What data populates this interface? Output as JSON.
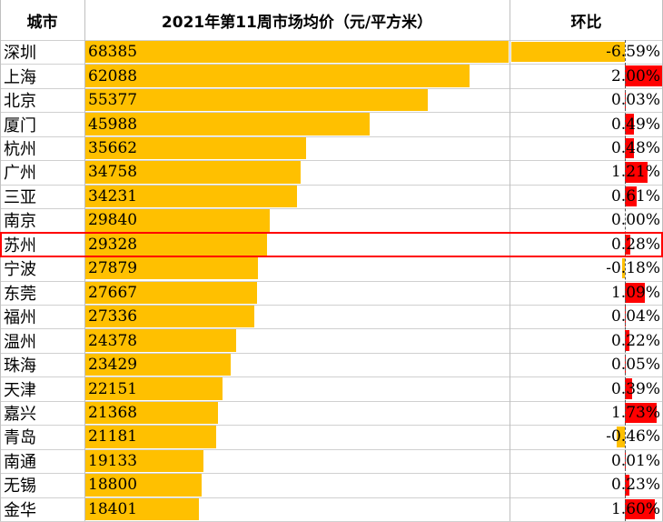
{
  "header": {
    "city_label": "城市",
    "price_label": "2021年第11周市场均价（元/平方米）",
    "change_label": "环比"
  },
  "highlight_city": "苏州",
  "colors": {
    "price_bar": "#ffc000",
    "change_up": "#ff0000",
    "change_down": "#ffc000",
    "highlight": "#ff0000"
  },
  "chart_data": {
    "type": "table",
    "columns": [
      "城市",
      "2021年第11周市场均价（元/平方米）",
      "环比"
    ],
    "rows": [
      {
        "city": "深圳",
        "price": 68385,
        "change": -6.59,
        "change_label": "-6.59%"
      },
      {
        "city": "上海",
        "price": 62088,
        "change": 2.0,
        "change_label": "2.00%"
      },
      {
        "city": "北京",
        "price": 55377,
        "change": 0.03,
        "change_label": "0.03%"
      },
      {
        "city": "厦门",
        "price": 45988,
        "change": 0.49,
        "change_label": "0.49%"
      },
      {
        "city": "杭州",
        "price": 35662,
        "change": 0.48,
        "change_label": "0.48%"
      },
      {
        "city": "广州",
        "price": 34758,
        "change": 1.21,
        "change_label": "1.21%"
      },
      {
        "city": "三亚",
        "price": 34231,
        "change": 0.61,
        "change_label": "0.61%"
      },
      {
        "city": "南京",
        "price": 29840,
        "change": 0.0,
        "change_label": "0.00%"
      },
      {
        "city": "苏州",
        "price": 29328,
        "change": 0.28,
        "change_label": "0.28%"
      },
      {
        "city": "宁波",
        "price": 27879,
        "change": -0.18,
        "change_label": "-0.18%"
      },
      {
        "city": "东莞",
        "price": 27667,
        "change": 1.09,
        "change_label": "1.09%"
      },
      {
        "city": "福州",
        "price": 27336,
        "change": 0.04,
        "change_label": "0.04%"
      },
      {
        "city": "温州",
        "price": 24378,
        "change": 0.22,
        "change_label": "0.22%"
      },
      {
        "city": "珠海",
        "price": 23429,
        "change": 0.05,
        "change_label": "0.05%"
      },
      {
        "city": "天津",
        "price": 22151,
        "change": 0.39,
        "change_label": "0.39%"
      },
      {
        "city": "嘉兴",
        "price": 21368,
        "change": 1.73,
        "change_label": "1.73%"
      },
      {
        "city": "青岛",
        "price": 21181,
        "change": -0.46,
        "change_label": "-0.46%"
      },
      {
        "city": "南通",
        "price": 19133,
        "change": 0.01,
        "change_label": "0.01%"
      },
      {
        "city": "无锡",
        "price": 18800,
        "change": 0.23,
        "change_label": "0.23%"
      },
      {
        "city": "金华",
        "price": 18401,
        "change": 1.6,
        "change_label": "1.60%"
      }
    ]
  }
}
